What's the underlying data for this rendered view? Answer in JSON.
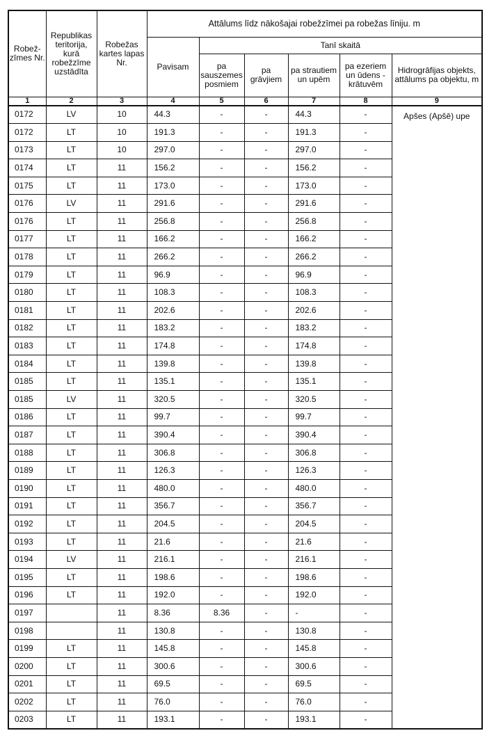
{
  "header": {
    "col1": "Robež-zīmes Nr.",
    "col2": "Republikas teritorija, kurā robežzīme uzstādīta",
    "col3": "Robežas kartes lapas Nr.",
    "group": "Attālums līdz nākošajai robežzīmei pa robežas līniju. m",
    "col4": "Pavisam",
    "subgroup": "Tanī skaitā",
    "col5": "pa sauszemes posmiem",
    "col6": "pa grāvjiem",
    "col7": "pa strautiem un upēm",
    "col8": "pa ezeriem un ūdens - krātuvēm",
    "col9": "Hidrogrāfijas objekts, attālums pa objektu, m",
    "numbers": [
      "1",
      "2",
      "3",
      "4",
      "5",
      "6",
      "7",
      "8",
      "9"
    ]
  },
  "hydro_object": "Apšes (Apšē) upe",
  "rows": [
    [
      "0172",
      "LV",
      "10",
      "44.3",
      "-",
      "-",
      "44.3",
      "-"
    ],
    [
      "0172",
      "LT",
      "10",
      "191.3",
      "-",
      "-",
      "191.3",
      "-"
    ],
    [
      "0173",
      "LT",
      "10",
      "297.0",
      "-",
      "-",
      "297.0",
      "-"
    ],
    [
      "0174",
      "LT",
      "11",
      "156.2",
      "-",
      "-",
      "156.2",
      "-"
    ],
    [
      "0175",
      "LT",
      "11",
      "173.0",
      "-",
      "-",
      "173.0",
      "-"
    ],
    [
      "0176",
      "LV",
      "11",
      "291.6",
      "-",
      "-",
      "291.6",
      "-"
    ],
    [
      "0176",
      "LT",
      "11",
      "256.8",
      "-",
      "-",
      "256.8",
      "-"
    ],
    [
      "0177",
      "LT",
      "11",
      "166.2",
      "-",
      "-",
      "166.2",
      "-"
    ],
    [
      "0178",
      "LT",
      "11",
      "266.2",
      "-",
      "-",
      "266.2",
      "-"
    ],
    [
      "0179",
      "LT",
      "11",
      "96.9",
      "-",
      "-",
      "96.9",
      "-"
    ],
    [
      "0180",
      "LT",
      "11",
      "108.3",
      "-",
      "-",
      "108.3",
      "-"
    ],
    [
      "0181",
      "LT",
      "11",
      "202.6",
      "-",
      "-",
      "202.6",
      "-"
    ],
    [
      "0182",
      "LT",
      "11",
      "183.2",
      "-",
      "-",
      "183.2",
      "-"
    ],
    [
      "0183",
      "LT",
      "11",
      "174.8",
      "-",
      "-",
      "174.8",
      "-"
    ],
    [
      "0184",
      "LT",
      "11",
      "139.8",
      "-",
      "-",
      "139.8",
      "-"
    ],
    [
      "0185",
      "LT",
      "11",
      "135.1",
      "-",
      "-",
      "135.1",
      "-"
    ],
    [
      "0185",
      "LV",
      "11",
      "320.5",
      "-",
      "-",
      "320.5",
      "-"
    ],
    [
      "0186",
      "LT",
      "11",
      "99.7",
      "-",
      "-",
      "99.7",
      "-"
    ],
    [
      "0187",
      "LT",
      "11",
      "390.4",
      "-",
      "-",
      "390.4",
      "-"
    ],
    [
      "0188",
      "LT",
      "11",
      "306.8",
      "-",
      "-",
      "306.8",
      "-"
    ],
    [
      "0189",
      "LT",
      "11",
      "126.3",
      "-",
      "-",
      "126.3",
      "-"
    ],
    [
      "0190",
      "LT",
      "11",
      "480.0",
      "-",
      "-",
      "480.0",
      "-"
    ],
    [
      "0191",
      "LT",
      "11",
      "356.7",
      "-",
      "-",
      "356.7",
      "-"
    ],
    [
      "0192",
      "LT",
      "11",
      "204.5",
      "-",
      "-",
      "204.5",
      "-"
    ],
    [
      "0193",
      "LT",
      "11",
      "21.6",
      "-",
      "-",
      "21.6",
      "-"
    ],
    [
      "0194",
      "LV",
      "11",
      "216.1",
      "-",
      "-",
      "216.1",
      "-"
    ],
    [
      "0195",
      "LT",
      "11",
      "198.6",
      "-",
      "-",
      "198.6",
      "-"
    ],
    [
      "0196",
      "LT",
      "11",
      "192.0",
      "-",
      "-",
      "192.0",
      "-"
    ],
    [
      "0197",
      "",
      "11",
      "8.36",
      "8.36",
      "-",
      "-",
      "-"
    ],
    [
      "0198",
      "",
      "11",
      "130.8",
      "-",
      "-",
      "130.8",
      "-"
    ],
    [
      "0199",
      "LT",
      "11",
      "145.8",
      "-",
      "-",
      "145.8",
      "-"
    ],
    [
      "0200",
      "LT",
      "11",
      "300.6",
      "-",
      "-",
      "300.6",
      "-"
    ],
    [
      "0201",
      "LT",
      "11",
      "69.5",
      "-",
      "-",
      "69.5",
      "-"
    ],
    [
      "0202",
      "LT",
      "11",
      "76.0",
      "-",
      "-",
      "76.0",
      "-"
    ],
    [
      "0203",
      "LT",
      "11",
      "193.1",
      "-",
      "-",
      "193.1",
      "-"
    ]
  ]
}
